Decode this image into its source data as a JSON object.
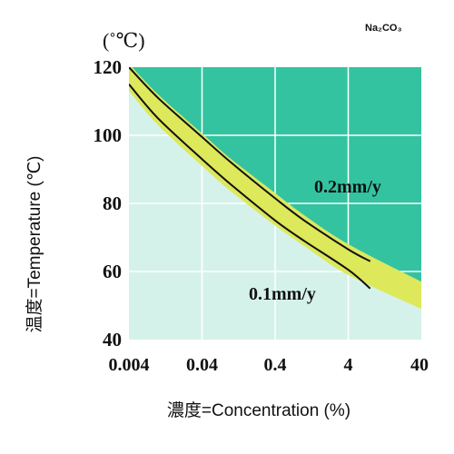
{
  "chart_data": {
    "type": "area",
    "title": "Na₂CO₃",
    "ylabel": "温度=Temperature (℃)",
    "yunit": "(˚℃)",
    "xlabel": "濃度=Concentration (%)",
    "x_scale": "log",
    "xlim": [
      0.004,
      40
    ],
    "ylim": [
      40,
      120
    ],
    "x_ticks": [
      "0.004",
      "0.04",
      "0.4",
      "4",
      "40"
    ],
    "y_ticks": [
      "120",
      "100",
      "80",
      "60",
      "40"
    ],
    "grid": true,
    "colors": {
      "high_zone": "#33c3a0",
      "low_zone": "#d5f2ea",
      "band": "#dde85a",
      "curve": "#111111"
    },
    "series": [
      {
        "name": "0.2mm/y",
        "x": [
          0.004,
          0.01,
          0.04,
          0.1,
          0.4,
          1,
          4,
          8
        ],
        "y": [
          120,
          111,
          99.5,
          92,
          81.5,
          75,
          66.5,
          63
        ]
      },
      {
        "name": "0.1mm/y",
        "x": [
          0.004,
          0.01,
          0.04,
          0.1,
          0.4,
          1,
          4,
          8
        ],
        "y": [
          115,
          105,
          93,
          85.5,
          75,
          69,
          60.5,
          55
        ]
      }
    ],
    "band_edges": {
      "upper": {
        "x": [
          0.004,
          0.01,
          0.04,
          0.1,
          0.4,
          1,
          4,
          40
        ],
        "y": [
          121,
          112,
          100.5,
          93,
          83,
          76.5,
          68,
          57
        ]
      },
      "lower": {
        "x": [
          0.004,
          0.01,
          0.04,
          0.1,
          0.4,
          1,
          4,
          40
        ],
        "y": [
          113,
          103,
          91,
          83.5,
          73.5,
          67.5,
          59,
          49
        ]
      }
    }
  }
}
